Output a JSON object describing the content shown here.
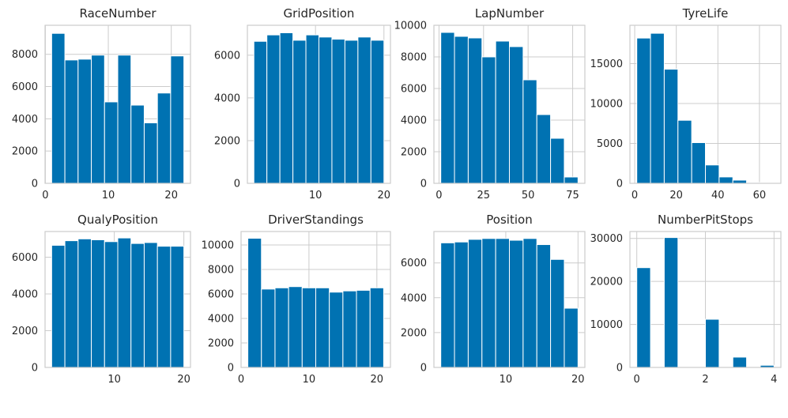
{
  "colors": {
    "bar": "#0072b2",
    "bar_edge": "#ffffff",
    "grid": "#cccccc",
    "text": "#262626"
  },
  "chart_data": [
    {
      "type": "bar",
      "title": "RaceNumber",
      "bins": [
        [
          1,
          3.1
        ],
        [
          3.1,
          5.2
        ],
        [
          5.2,
          7.3
        ],
        [
          7.3,
          9.4
        ],
        [
          9.4,
          11.5
        ],
        [
          11.5,
          13.6
        ],
        [
          13.6,
          15.7
        ],
        [
          15.7,
          17.8
        ],
        [
          17.8,
          19.9
        ],
        [
          19.9,
          22
        ]
      ],
      "values": [
        9300,
        7650,
        7700,
        7950,
        5050,
        7950,
        4850,
        3750,
        5600,
        7900
      ],
      "xlim": [
        -0.05,
        23.05
      ],
      "ylim": [
        0,
        9800
      ],
      "xticks": [
        0,
        10,
        20
      ],
      "yticks": [
        0,
        2000,
        4000,
        6000,
        8000
      ],
      "xtick_labels": [
        "0",
        "10",
        "20"
      ],
      "ytick_labels": [
        "0",
        "2000",
        "4000",
        "6000",
        "8000"
      ]
    },
    {
      "type": "bar",
      "title": "GridPosition",
      "bins": [
        [
          1,
          2.9
        ],
        [
          2.9,
          4.8
        ],
        [
          4.8,
          6.7
        ],
        [
          6.7,
          8.6
        ],
        [
          8.6,
          10.5
        ],
        [
          10.5,
          12.4
        ],
        [
          12.4,
          14.3
        ],
        [
          14.3,
          16.2
        ],
        [
          16.2,
          18.1
        ],
        [
          18.1,
          20
        ]
      ],
      "values": [
        6650,
        6950,
        7050,
        6700,
        6950,
        6850,
        6750,
        6700,
        6850,
        6700
      ],
      "xlim": [
        0.05,
        20.95
      ],
      "ylim": [
        0,
        7400
      ],
      "xticks": [
        10,
        20
      ],
      "yticks": [
        0,
        2000,
        4000,
        6000
      ],
      "xtick_labels": [
        "10",
        "20"
      ],
      "ytick_labels": [
        "0",
        "2000",
        "4000",
        "6000"
      ]
    },
    {
      "type": "bar",
      "title": "LapNumber",
      "bins": [
        [
          1,
          8.7
        ],
        [
          8.7,
          16.4
        ],
        [
          16.4,
          24.1
        ],
        [
          24.1,
          31.8
        ],
        [
          31.8,
          39.5
        ],
        [
          39.5,
          47.2
        ],
        [
          47.2,
          54.9
        ],
        [
          54.9,
          62.6
        ],
        [
          62.6,
          70.3
        ],
        [
          70.3,
          78
        ]
      ],
      "values": [
        9550,
        9300,
        9200,
        8000,
        9000,
        8650,
        6550,
        4350,
        2850,
        400
      ],
      "xlim": [
        -2.85,
        81.85
      ],
      "ylim": [
        0,
        10000
      ],
      "xticks": [
        0,
        25,
        50,
        75
      ],
      "yticks": [
        0,
        2000,
        4000,
        6000,
        8000,
        10000
      ],
      "xtick_labels": [
        "0",
        "25",
        "50",
        "75"
      ],
      "ytick_labels": [
        "0",
        "2000",
        "4000",
        "6000",
        "8000",
        "10000"
      ]
    },
    {
      "type": "bar",
      "title": "TyreLife",
      "bins": [
        [
          1,
          7.6
        ],
        [
          7.6,
          14.2
        ],
        [
          14.2,
          20.8
        ],
        [
          20.8,
          27.4
        ],
        [
          27.4,
          34
        ],
        [
          34,
          40.6
        ],
        [
          40.6,
          47.2
        ],
        [
          47.2,
          53.8
        ],
        [
          53.8,
          60.4
        ],
        [
          60.4,
          67
        ]
      ],
      "values": [
        18200,
        18800,
        14300,
        7900,
        5100,
        2300,
        800,
        400,
        100,
        50
      ],
      "xlim": [
        -2.3,
        70.3
      ],
      "ylim": [
        0,
        19800
      ],
      "xticks": [
        0,
        20,
        40,
        60
      ],
      "yticks": [
        0,
        5000,
        10000,
        15000
      ],
      "xtick_labels": [
        "0",
        "20",
        "40",
        "60"
      ],
      "ytick_labels": [
        "0",
        "5000",
        "10000",
        "15000"
      ]
    },
    {
      "type": "bar",
      "title": "QualyPosition",
      "bins": [
        [
          1,
          2.9
        ],
        [
          2.9,
          4.8
        ],
        [
          4.8,
          6.7
        ],
        [
          6.7,
          8.6
        ],
        [
          8.6,
          10.5
        ],
        [
          10.5,
          12.4
        ],
        [
          12.4,
          14.3
        ],
        [
          14.3,
          16.2
        ],
        [
          16.2,
          18.1
        ],
        [
          18.1,
          20
        ]
      ],
      "values": [
        6650,
        6900,
        7000,
        6950,
        6850,
        7050,
        6750,
        6800,
        6600,
        6600
      ],
      "xlim": [
        0.05,
        20.95
      ],
      "ylim": [
        0,
        7400
      ],
      "xticks": [
        10,
        20
      ],
      "yticks": [
        0,
        2000,
        4000,
        6000
      ],
      "xtick_labels": [
        "10",
        "20"
      ],
      "ytick_labels": [
        "0",
        "2000",
        "4000",
        "6000"
      ]
    },
    {
      "type": "bar",
      "title": "DriverStandings",
      "bins": [
        [
          1,
          3
        ],
        [
          3,
          5
        ],
        [
          5,
          7
        ],
        [
          7,
          9
        ],
        [
          9,
          11
        ],
        [
          11,
          13
        ],
        [
          13,
          15
        ],
        [
          15,
          17
        ],
        [
          17,
          19
        ],
        [
          19,
          21
        ]
      ],
      "values": [
        10550,
        6400,
        6500,
        6600,
        6500,
        6500,
        6150,
        6250,
        6300,
        6500
      ],
      "xlim": [
        0,
        22
      ],
      "ylim": [
        0,
        11100
      ],
      "xticks": [
        0,
        10,
        20
      ],
      "yticks": [
        0,
        2000,
        4000,
        6000,
        8000,
        10000
      ],
      "xtick_labels": [
        "0",
        "10",
        "20"
      ],
      "ytick_labels": [
        "0",
        "2000",
        "4000",
        "6000",
        "8000",
        "10000"
      ]
    },
    {
      "type": "bar",
      "title": "Position",
      "bins": [
        [
          1,
          2.9
        ],
        [
          2.9,
          4.8
        ],
        [
          4.8,
          6.7
        ],
        [
          6.7,
          8.6
        ],
        [
          8.6,
          10.5
        ],
        [
          10.5,
          12.4
        ],
        [
          12.4,
          14.3
        ],
        [
          14.3,
          16.2
        ],
        [
          16.2,
          18.1
        ],
        [
          18.1,
          20
        ]
      ],
      "values": [
        7150,
        7200,
        7350,
        7400,
        7400,
        7300,
        7400,
        7050,
        6200,
        3400
      ],
      "xlim": [
        0.05,
        20.95
      ],
      "ylim": [
        0,
        7800
      ],
      "xticks": [
        10,
        20
      ],
      "yticks": [
        0,
        2000,
        4000,
        6000
      ],
      "xtick_labels": [
        "10",
        "20"
      ],
      "ytick_labels": [
        "0",
        "2000",
        "4000",
        "6000"
      ]
    },
    {
      "type": "bar",
      "title": "NumberPitStops",
      "bins": [
        [
          0,
          0.4
        ],
        [
          0.4,
          0.8
        ],
        [
          0.8,
          1.2
        ],
        [
          1.2,
          1.6
        ],
        [
          1.6,
          2
        ],
        [
          2,
          2.4
        ],
        [
          2.4,
          2.8
        ],
        [
          2.8,
          3.2
        ],
        [
          3.2,
          3.6
        ],
        [
          3.6,
          4
        ]
      ],
      "values": [
        23200,
        0,
        30200,
        0,
        0,
        11200,
        0,
        2400,
        0,
        500
      ],
      "xlim": [
        -0.2,
        4.2
      ],
      "ylim": [
        0,
        31600
      ],
      "xticks": [
        0,
        2,
        4
      ],
      "yticks": [
        0,
        10000,
        20000,
        30000
      ],
      "xtick_labels": [
        "0",
        "2",
        "4"
      ],
      "ytick_labels": [
        "0",
        "10000",
        "20000",
        "30000"
      ]
    }
  ]
}
